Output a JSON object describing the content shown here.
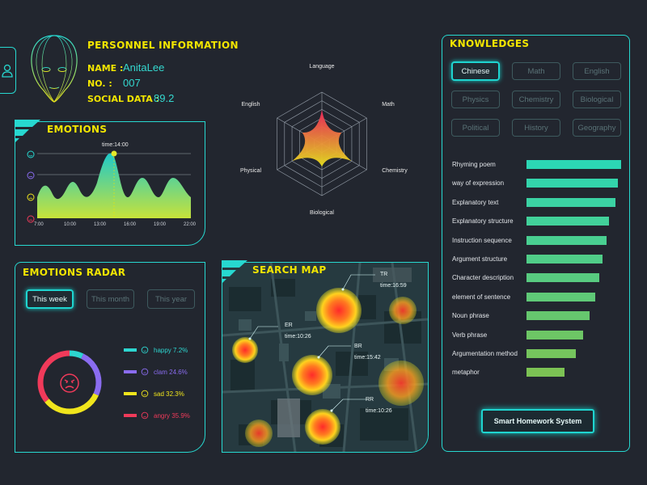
{
  "personnel": {
    "title": "PERSONNEL INFORMATION",
    "name_label": "NAME :",
    "name_value": "AnitaLee",
    "no_label": "NO. :",
    "no_value": "007",
    "social_label": "SOCIAL DATA :",
    "social_value": "89.2"
  },
  "emotions": {
    "title": "EMOTIONS",
    "peak_label": "time:14:00",
    "x_ticks": [
      "7:00",
      "10:00",
      "13:00",
      "16:00",
      "19:00",
      "22:00"
    ],
    "icons": [
      "happy-face-icon",
      "calm-face-icon",
      "sad-face-icon",
      "angry-face-icon"
    ]
  },
  "radar": {
    "axes": [
      "Language",
      "Math",
      "Chemistry",
      "Biological",
      "Physical",
      "English"
    ],
    "values": [
      0.66,
      0.44,
      0.66,
      0.44,
      0.66,
      0.44
    ]
  },
  "emotions_radar": {
    "title": "EMOTIONS RADAR",
    "tabs": [
      "This week",
      "This month",
      "This year"
    ],
    "center_icon": "angry-face-icon",
    "legend": [
      {
        "label": "happy 7.2%",
        "color": "#2dd6d0",
        "value": 7.2
      },
      {
        "label": "clam 24.6%",
        "color": "#8a6cf0",
        "value": 24.6
      },
      {
        "label": "sad 32.3%",
        "color": "#f0e51c",
        "value": 32.3
      },
      {
        "label": "angry 35.9%",
        "color": "#f03a5a",
        "value": 35.9
      }
    ]
  },
  "search_map": {
    "title": "SEARCH MAP",
    "markers": [
      {
        "code": "TR",
        "time": "time:16:59"
      },
      {
        "code": "ER",
        "time": "time:10:26"
      },
      {
        "code": "BR",
        "time": "time:15:42"
      },
      {
        "code": "RR",
        "time": "time:10:26"
      }
    ]
  },
  "knowledges": {
    "title": "KNOWLEDGES",
    "subjects": [
      "Chinese",
      "Math",
      "English",
      "Physics",
      "Chemistry",
      "Biological",
      "Political",
      "History",
      "Geography"
    ],
    "skills": [
      {
        "label": "Rhyming poem",
        "value": 100
      },
      {
        "label": "way of expression",
        "value": 97
      },
      {
        "label": "Explanatory text",
        "value": 94
      },
      {
        "label": "Explanatory structure",
        "value": 87
      },
      {
        "label": "Instruction sequence",
        "value": 85
      },
      {
        "label": "Argument structure",
        "value": 80
      },
      {
        "label": "Character description",
        "value": 77
      },
      {
        "label": "element of sentence",
        "value": 73
      },
      {
        "label": "Noun phrase",
        "value": 67
      },
      {
        "label": "Verb phrase",
        "value": 60
      },
      {
        "label": "Argumentation method",
        "value": 52
      },
      {
        "label": "metaphor",
        "value": 40
      }
    ],
    "action_label": "Smart Homework System"
  },
  "colors": {
    "accent": "#27d8d0",
    "title": "#f2e500",
    "bg": "#22262f"
  }
}
